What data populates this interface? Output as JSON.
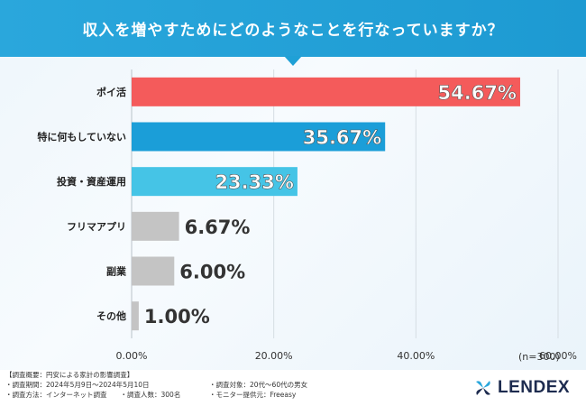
{
  "header": {
    "title": "収入を増やすためにどのようなことを行なっていますか？"
  },
  "chart_data": {
    "type": "bar",
    "orientation": "horizontal",
    "categories": [
      "ポイ活",
      "特に何もしていない",
      "投資・資産運用",
      "フリマアプリ",
      "副業",
      "その他"
    ],
    "values": [
      54.67,
      35.67,
      23.33,
      6.67,
      6.0,
      1.0
    ],
    "value_labels": [
      "54.67%",
      "35.67%",
      "23.33%",
      "6.67%",
      "6.00%",
      "1.00%"
    ],
    "bar_colors": [
      "#f45b5b",
      "#1b9ed8",
      "#45c4e6",
      "#c4c4c4",
      "#c4c4c4",
      "#c4c4c4"
    ],
    "xlim": [
      0,
      60
    ],
    "x_ticks": [
      "0.00%",
      "20.00%",
      "40.00%",
      "60.00%"
    ],
    "x_tick_values": [
      0,
      20,
      40,
      60
    ],
    "grid": true,
    "annotation": "(n=300)"
  },
  "footer": {
    "notes": [
      [
        "【調査概要：円安による家計の影響調査】",
        ""
      ],
      [
        "・調査期間：2024年5月9日〜2024年5月10日",
        "・調査対象：20代〜60代の男女"
      ],
      [
        "・調査方法：インターネット調査　　・調査人数：300名",
        "・モニター提供元：Freeasy"
      ]
    ],
    "logo_text": "LENDEX"
  }
}
